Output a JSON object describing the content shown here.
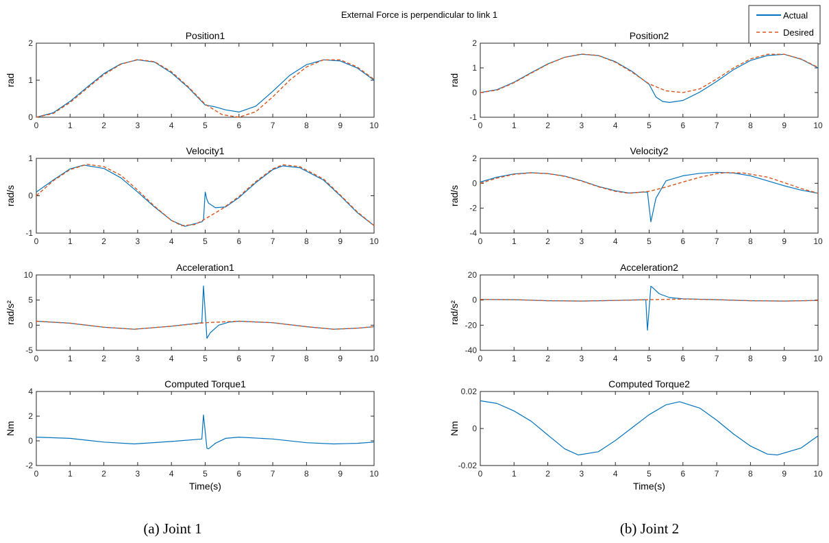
{
  "figure": {
    "suptitle": "External Force is perpendicular to link 1",
    "legend": [
      "Actual",
      "Desired"
    ],
    "captions": [
      "(a) Joint 1",
      "(b) Joint 2"
    ],
    "colors": {
      "actual": "#0072BD",
      "desired": "#D95319"
    }
  },
  "chart_data": [
    {
      "type": "line",
      "title": "Position1",
      "xlabel": "",
      "ylabel": "rad",
      "xlim": [
        0,
        10
      ],
      "ylim": [
        0,
        2
      ],
      "yticks": [
        "0",
        "1",
        "2"
      ],
      "xticks": [
        0,
        1,
        2,
        3,
        4,
        5,
        6,
        7,
        8,
        9,
        10
      ],
      "series": [
        {
          "name": "Actual",
          "x": [
            0,
            0.5,
            1,
            1.5,
            2,
            2.5,
            3,
            3.5,
            4,
            4.5,
            5,
            5.3,
            5.6,
            6,
            6.5,
            7,
            7.5,
            8,
            8.5,
            9,
            9.5,
            10
          ],
          "y": [
            0,
            0.12,
            0.43,
            0.81,
            1.18,
            1.44,
            1.55,
            1.49,
            1.2,
            0.8,
            0.33,
            0.28,
            0.2,
            0.14,
            0.3,
            0.7,
            1.13,
            1.42,
            1.55,
            1.52,
            1.33,
            1.0
          ]
        },
        {
          "name": "Desired",
          "x": [
            0,
            0.5,
            1,
            1.5,
            2,
            2.5,
            3,
            3.5,
            4,
            4.5,
            5,
            5.5,
            6,
            6.5,
            7,
            7.5,
            8,
            8.5,
            9,
            9.5,
            10
          ],
          "y": [
            0,
            0.1,
            0.4,
            0.78,
            1.15,
            1.43,
            1.56,
            1.5,
            1.23,
            0.82,
            0.35,
            0.07,
            0.0,
            0.15,
            0.55,
            1.0,
            1.36,
            1.55,
            1.55,
            1.36,
            1.02
          ]
        }
      ]
    },
    {
      "type": "line",
      "title": "Velocity1",
      "xlabel": "",
      "ylabel": "rad/s",
      "xlim": [
        0,
        10
      ],
      "ylim": [
        -1,
        1
      ],
      "yticks": [
        "-1",
        "0",
        "1"
      ],
      "xticks": [
        0,
        1,
        2,
        3,
        4,
        5,
        6,
        7,
        8,
        9,
        10
      ],
      "series": [
        {
          "name": "Actual",
          "x": [
            0,
            0.5,
            1,
            1.4,
            2,
            2.5,
            3,
            3.5,
            4,
            4.4,
            4.9,
            4.95,
            5.0,
            5.05,
            5.1,
            5.3,
            5.6,
            6,
            6.5,
            7,
            7.3,
            7.8,
            8.5,
            9,
            9.5,
            10
          ],
          "y": [
            0.1,
            0.42,
            0.72,
            0.82,
            0.73,
            0.48,
            0.1,
            -0.3,
            -0.66,
            -0.82,
            -0.7,
            -0.65,
            0.1,
            -0.1,
            -0.2,
            -0.32,
            -0.3,
            -0.05,
            0.35,
            0.7,
            0.8,
            0.75,
            0.42,
            0.0,
            -0.45,
            -0.8
          ]
        },
        {
          "name": "Desired",
          "x": [
            0,
            0.5,
            1,
            1.5,
            2,
            2.5,
            3,
            3.5,
            4,
            4.3,
            4.7,
            5,
            5.5,
            6,
            6.5,
            7,
            7.3,
            7.8,
            8.5,
            9,
            9.5,
            10
          ],
          "y": [
            0.0,
            0.4,
            0.7,
            0.84,
            0.78,
            0.55,
            0.15,
            -0.28,
            -0.66,
            -0.8,
            -0.77,
            -0.62,
            -0.35,
            -0.02,
            0.38,
            0.72,
            0.83,
            0.78,
            0.45,
            0.02,
            -0.43,
            -0.8
          ]
        }
      ]
    },
    {
      "type": "line",
      "title": "Acceleration1",
      "xlabel": "",
      "ylabel": "rad/s²",
      "xlim": [
        0,
        10
      ],
      "ylim": [
        -5,
        10
      ],
      "yticks": [
        "-5",
        "0",
        "5",
        "10"
      ],
      "xticks": [
        0,
        1,
        2,
        3,
        4,
        5,
        6,
        7,
        8,
        9,
        10
      ],
      "series": [
        {
          "name": "Actual",
          "x": [
            0,
            1,
            2,
            2.9,
            4,
            4.9,
            4.95,
            5.05,
            5.15,
            5.4,
            5.7,
            6,
            7,
            8,
            8.8,
            9.5,
            10
          ],
          "y": [
            0.8,
            0.4,
            -0.4,
            -0.8,
            -0.2,
            0.5,
            7.8,
            -2.6,
            -1.5,
            0.0,
            0.6,
            0.8,
            0.5,
            -0.3,
            -0.8,
            -0.6,
            -0.3
          ]
        },
        {
          "name": "Desired",
          "x": [
            0,
            1,
            2,
            2.9,
            4,
            5,
            6,
            7,
            8,
            8.8,
            9.5,
            10
          ],
          "y": [
            0.8,
            0.4,
            -0.4,
            -0.8,
            -0.2,
            0.5,
            0.8,
            0.5,
            -0.3,
            -0.8,
            -0.6,
            -0.3
          ]
        }
      ]
    },
    {
      "type": "line",
      "title": "Computed Torque1",
      "xlabel": "Time(s)",
      "ylabel": "Nm",
      "xlim": [
        0,
        10
      ],
      "ylim": [
        -2,
        4
      ],
      "yticks": [
        "-2",
        "0",
        "2",
        "4"
      ],
      "xticks": [
        0,
        1,
        2,
        3,
        4,
        5,
        6,
        7,
        8,
        9,
        10
      ],
      "series": [
        {
          "name": "Actual",
          "x": [
            0,
            1,
            2,
            2.9,
            4,
            4.9,
            4.95,
            5.05,
            5.1,
            5.3,
            5.6,
            6,
            7,
            8,
            8.8,
            9.5,
            10
          ],
          "y": [
            0.3,
            0.2,
            -0.1,
            -0.25,
            -0.05,
            0.15,
            2.1,
            -0.6,
            -0.65,
            -0.2,
            0.2,
            0.3,
            0.15,
            -0.15,
            -0.25,
            -0.2,
            -0.1
          ]
        }
      ]
    },
    {
      "type": "line",
      "title": "Position2",
      "xlabel": "",
      "ylabel": "rad",
      "xlim": [
        0,
        10
      ],
      "ylim": [
        -1,
        2
      ],
      "yticks": [
        "-1",
        "0",
        "1",
        "2"
      ],
      "xticks": [
        0,
        1,
        2,
        3,
        4,
        5,
        6,
        7,
        8,
        9,
        10
      ],
      "series": [
        {
          "name": "Actual",
          "x": [
            0,
            0.5,
            1,
            1.5,
            2,
            2.5,
            3,
            3.5,
            4,
            4.5,
            5,
            5.2,
            5.4,
            5.6,
            6,
            6.5,
            7,
            7.5,
            8,
            8.5,
            9,
            9.5,
            10
          ],
          "y": [
            0,
            0.12,
            0.42,
            0.8,
            1.16,
            1.43,
            1.55,
            1.5,
            1.25,
            0.85,
            0.33,
            -0.18,
            -0.36,
            -0.4,
            -0.32,
            0.02,
            0.45,
            0.93,
            1.3,
            1.5,
            1.55,
            1.35,
            1.0
          ]
        },
        {
          "name": "Desired",
          "x": [
            0,
            0.5,
            1,
            1.5,
            2,
            2.5,
            3,
            3.5,
            4,
            4.5,
            5,
            5.5,
            6,
            6.5,
            7,
            7.5,
            8,
            8.5,
            9,
            9.5,
            10
          ],
          "y": [
            0,
            0.1,
            0.4,
            0.78,
            1.15,
            1.43,
            1.56,
            1.5,
            1.23,
            0.82,
            0.35,
            0.07,
            0.0,
            0.15,
            0.55,
            1.0,
            1.36,
            1.55,
            1.55,
            1.36,
            1.02
          ]
        }
      ]
    },
    {
      "type": "line",
      "title": "Velocity2",
      "xlabel": "",
      "ylabel": "rad/s",
      "xlim": [
        0,
        10
      ],
      "ylim": [
        -4,
        2
      ],
      "yticks": [
        "-4",
        "-2",
        "0",
        "2"
      ],
      "xticks": [
        0,
        1,
        2,
        3,
        4,
        5,
        6,
        7,
        8,
        9,
        10
      ],
      "series": [
        {
          "name": "Actual",
          "x": [
            0,
            0.5,
            1,
            1.5,
            2,
            2.5,
            3,
            3.5,
            4,
            4.4,
            4.8,
            4.95,
            5.05,
            5.2,
            5.5,
            6,
            6.5,
            7,
            7.5,
            8,
            8.5,
            9,
            9.5,
            10
          ],
          "y": [
            0.1,
            0.5,
            0.75,
            0.85,
            0.78,
            0.58,
            0.2,
            -0.25,
            -0.6,
            -0.78,
            -0.7,
            -0.7,
            -3.1,
            -1.2,
            0.2,
            0.6,
            0.8,
            0.88,
            0.82,
            0.6,
            0.2,
            -0.2,
            -0.55,
            -0.8
          ]
        },
        {
          "name": "Desired",
          "x": [
            0,
            0.5,
            1,
            1.5,
            2,
            2.5,
            3,
            3.5,
            4,
            4.4,
            5,
            5.5,
            6,
            6.5,
            7,
            7.3,
            7.8,
            8.5,
            9,
            9.5,
            10
          ],
          "y": [
            0.0,
            0.42,
            0.72,
            0.84,
            0.78,
            0.56,
            0.18,
            -0.28,
            -0.65,
            -0.8,
            -0.65,
            -0.3,
            0.1,
            0.48,
            0.78,
            0.86,
            0.82,
            0.5,
            0.05,
            -0.42,
            -0.8
          ]
        }
      ]
    },
    {
      "type": "line",
      "title": "Acceleration2",
      "xlabel": "",
      "ylabel": "rad/s²",
      "xlim": [
        0,
        10
      ],
      "ylim": [
        -40,
        20
      ],
      "yticks": [
        "-40",
        "-20",
        "0",
        "20"
      ],
      "xticks": [
        0,
        1,
        2,
        3,
        4,
        5,
        6,
        7,
        8,
        9,
        10
      ],
      "series": [
        {
          "name": "Actual",
          "x": [
            0,
            1,
            2,
            3,
            4,
            4.9,
            4.95,
            5.05,
            5.1,
            5.3,
            5.6,
            6,
            7,
            8,
            9,
            10
          ],
          "y": [
            0.5,
            0.3,
            -0.5,
            -0.8,
            -0.3,
            0.3,
            -24,
            11,
            10,
            5,
            2,
            1,
            0.3,
            -0.5,
            -0.8,
            -0.3
          ]
        },
        {
          "name": "Desired",
          "x": [
            0,
            1,
            2,
            3,
            4,
            5,
            6,
            7,
            8,
            9,
            10
          ],
          "y": [
            0.5,
            0.3,
            -0.5,
            -0.8,
            -0.3,
            0.3,
            0.8,
            0.3,
            -0.5,
            -0.8,
            -0.3
          ]
        }
      ]
    },
    {
      "type": "line",
      "title": "Computed Torque2",
      "xlabel": "Time(s)",
      "ylabel": "Nm",
      "xlim": [
        0,
        10
      ],
      "ylim": [
        -0.02,
        0.02
      ],
      "yticks": [
        "-0.02",
        "0",
        "0.02"
      ],
      "xticks": [
        0,
        1,
        2,
        3,
        4,
        5,
        6,
        7,
        8,
        9,
        10
      ],
      "series": [
        {
          "name": "Actual",
          "x": [
            0,
            0.5,
            1,
            1.5,
            2,
            2.5,
            2.9,
            3.5,
            4,
            4.5,
            5,
            5.5,
            5.9,
            6.5,
            7,
            7.5,
            8,
            8.5,
            8.8,
            9.5,
            10
          ],
          "y": [
            0.015,
            0.0135,
            0.0095,
            0.004,
            -0.0035,
            -0.011,
            -0.0143,
            -0.0125,
            -0.0065,
            0.0005,
            0.0075,
            0.0128,
            0.0145,
            0.011,
            0.0045,
            -0.003,
            -0.0095,
            -0.0138,
            -0.0143,
            -0.0105,
            -0.004
          ]
        }
      ]
    }
  ]
}
